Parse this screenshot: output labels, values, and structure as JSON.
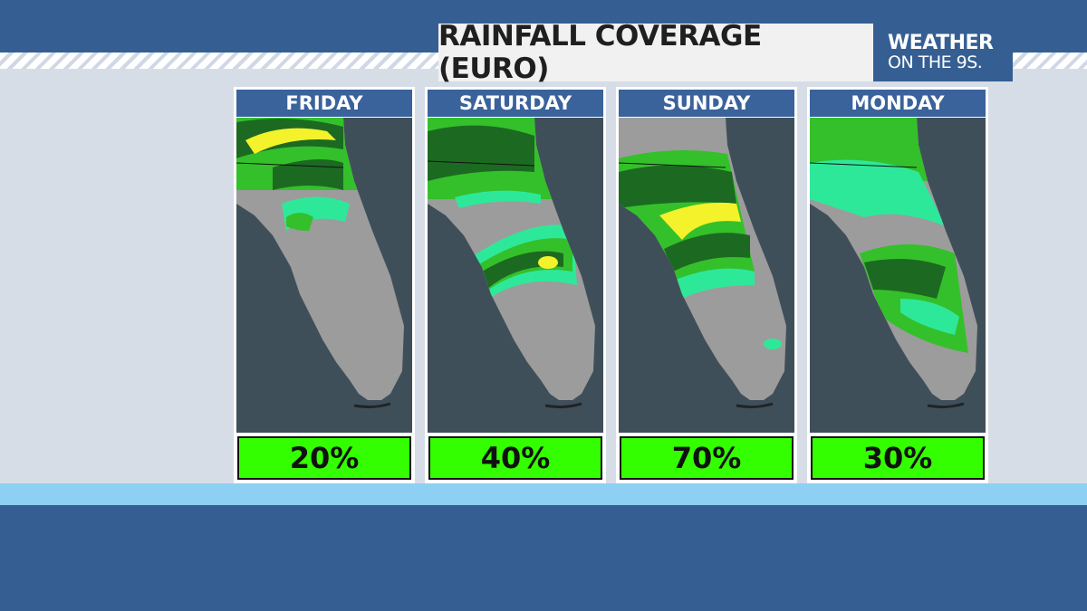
{
  "title": "RAINFALL COVERAGE (EURO)",
  "logo": {
    "line1": "WEATHER",
    "line2": "ON THE 9S."
  },
  "colors": {
    "brand_blue": "#355f92",
    "percent_box": "#33ff00",
    "rain_light": "#2ee89a",
    "rain_medium": "#34c02a",
    "rain_heavy": "#1c6a22",
    "rain_intense": "#f4f22a",
    "land": "#9c9c9c",
    "water": "#3f4f59"
  },
  "days": [
    {
      "label": "FRIDAY",
      "coverage": "20%",
      "map_icon": "florida-rain-map"
    },
    {
      "label": "SATURDAY",
      "coverage": "40%",
      "map_icon": "florida-rain-map"
    },
    {
      "label": "SUNDAY",
      "coverage": "70%",
      "map_icon": "florida-rain-map"
    },
    {
      "label": "MONDAY",
      "coverage": "30%",
      "map_icon": "florida-rain-map"
    }
  ]
}
